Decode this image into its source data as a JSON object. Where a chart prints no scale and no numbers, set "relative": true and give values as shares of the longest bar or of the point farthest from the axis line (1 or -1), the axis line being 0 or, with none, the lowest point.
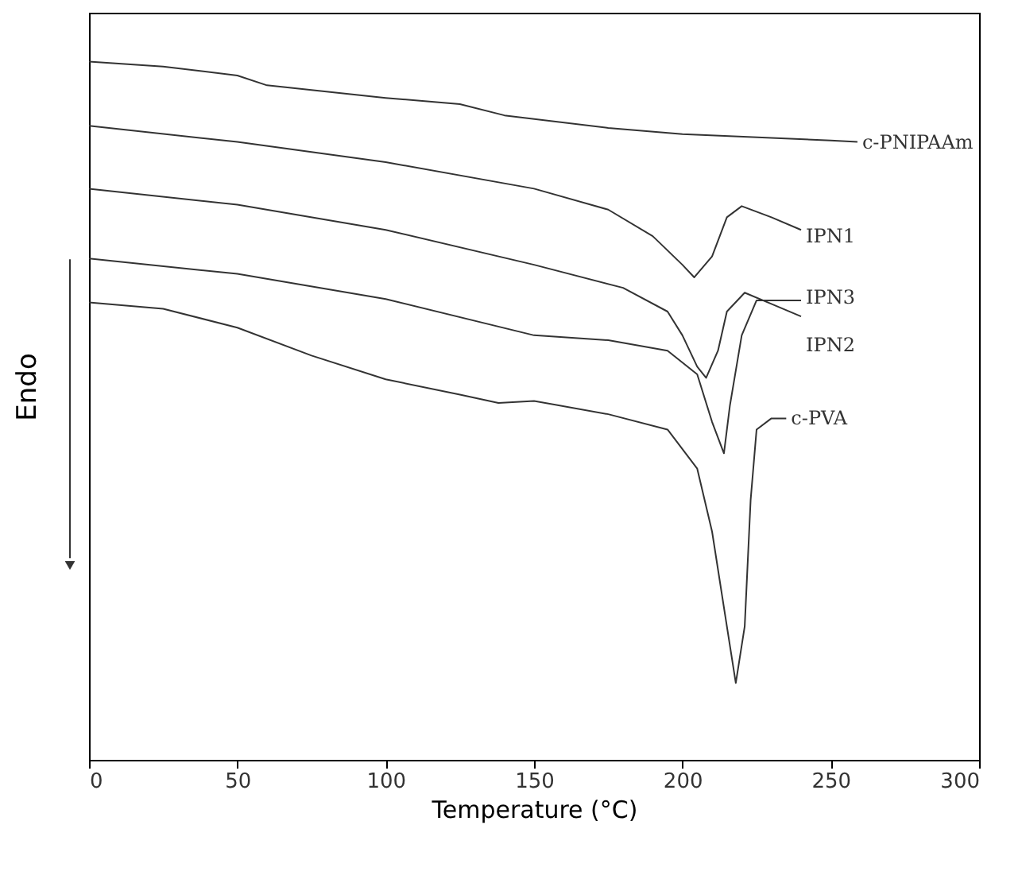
{
  "chart_data": {
    "type": "line",
    "relative": true,
    "xlabel": "Temperature (°C)",
    "ylabel": "Endo",
    "xlim": [
      0,
      300
    ],
    "xticks": [
      0,
      50,
      100,
      150,
      200,
      250,
      300
    ],
    "series": [
      {
        "name": "c-PNIPAAm",
        "color": "#333333",
        "x": [
          0,
          25,
          50,
          60,
          100,
          125,
          140,
          175,
          200,
          250,
          259
        ],
        "values": [
          1.0,
          0.993,
          0.98,
          0.966,
          0.948,
          0.939,
          0.923,
          0.905,
          0.896,
          0.887,
          0.885
        ]
      },
      {
        "name": "IPN1",
        "color": "#333333",
        "x": [
          0,
          50,
          100,
          150,
          175,
          190,
          200,
          204,
          210,
          215,
          220,
          230,
          240
        ],
        "values": [
          0.908,
          0.885,
          0.856,
          0.818,
          0.788,
          0.75,
          0.709,
          0.691,
          0.721,
          0.777,
          0.793,
          0.777,
          0.759
        ]
      },
      {
        "name": "IPN2",
        "color": "#333333",
        "x": [
          0,
          50,
          100,
          150,
          180,
          195,
          200,
          205,
          208,
          212,
          215,
          221,
          230,
          240
        ],
        "values": [
          0.818,
          0.795,
          0.759,
          0.709,
          0.676,
          0.642,
          0.608,
          0.563,
          0.547,
          0.586,
          0.642,
          0.669,
          0.653,
          0.635
        ]
      },
      {
        "name": "IPN3",
        "color": "#333333",
        "x": [
          0,
          50,
          100,
          150,
          175,
          195,
          205,
          210,
          214,
          216,
          220,
          225,
          240
        ],
        "values": [
          0.718,
          0.696,
          0.66,
          0.608,
          0.601,
          0.586,
          0.552,
          0.484,
          0.439,
          0.507,
          0.608,
          0.658,
          0.658
        ]
      },
      {
        "name": "c-PVA",
        "color": "#333333",
        "x": [
          0,
          25,
          50,
          75,
          100,
          125,
          138,
          150,
          175,
          195,
          205,
          210,
          215,
          218,
          221,
          223,
          225,
          230,
          235
        ],
        "values": [
          0.655,
          0.646,
          0.619,
          0.579,
          0.545,
          0.523,
          0.511,
          0.514,
          0.495,
          0.473,
          0.417,
          0.327,
          0.191,
          0.11,
          0.191,
          0.372,
          0.473,
          0.489,
          0.489
        ]
      }
    ]
  }
}
